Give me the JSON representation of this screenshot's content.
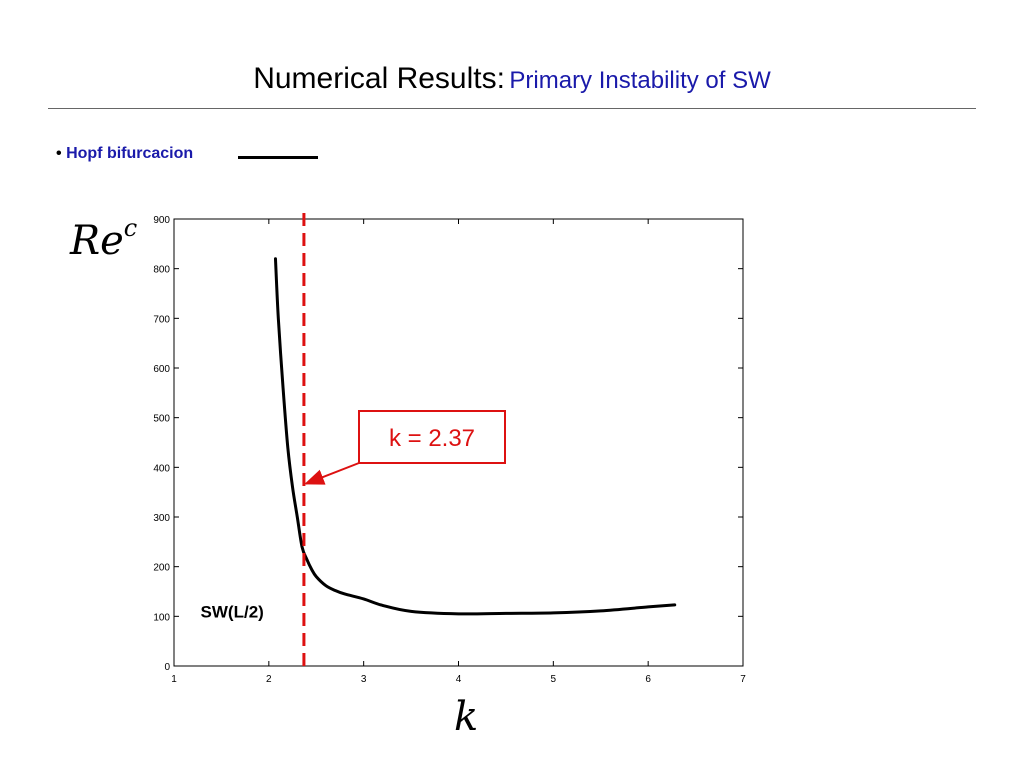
{
  "header": {
    "title_main": "Numerical Results:",
    "title_sub": "Primary Instability of SW"
  },
  "bullet": {
    "marker": "•",
    "text": "Hopf bifurcacion"
  },
  "chart_data": {
    "type": "line",
    "ylabel_main": "Re",
    "ylabel_sup": "c",
    "xlabel": "k",
    "xlim": [
      1,
      7
    ],
    "ylim": [
      0,
      900
    ],
    "xticks": [
      1,
      2,
      3,
      4,
      5,
      6,
      7
    ],
    "yticks": [
      0,
      100,
      200,
      300,
      400,
      500,
      600,
      700,
      800,
      900
    ],
    "grid": false,
    "series": [
      {
        "label": "SW(L/2)",
        "color": "#000000",
        "x": [
          2.07,
          2.1,
          2.15,
          2.2,
          2.25,
          2.3,
          2.35,
          2.4,
          2.45,
          2.5,
          2.6,
          2.7,
          2.8,
          3.0,
          3.2,
          3.5,
          4.0,
          4.5,
          5.0,
          5.5,
          6.0,
          6.28
        ],
        "y": [
          820,
          700,
          560,
          440,
          360,
          300,
          240,
          215,
          195,
          180,
          162,
          152,
          145,
          135,
          122,
          110,
          105,
          106,
          107,
          111,
          119,
          123
        ]
      }
    ],
    "marker_line": {
      "x": 2.37,
      "color": "#dd1111",
      "style": "dashed"
    },
    "annotation": {
      "text": "k = 2.37",
      "color": "#dd1111",
      "point_x": 2.37,
      "point_y": 355
    }
  }
}
